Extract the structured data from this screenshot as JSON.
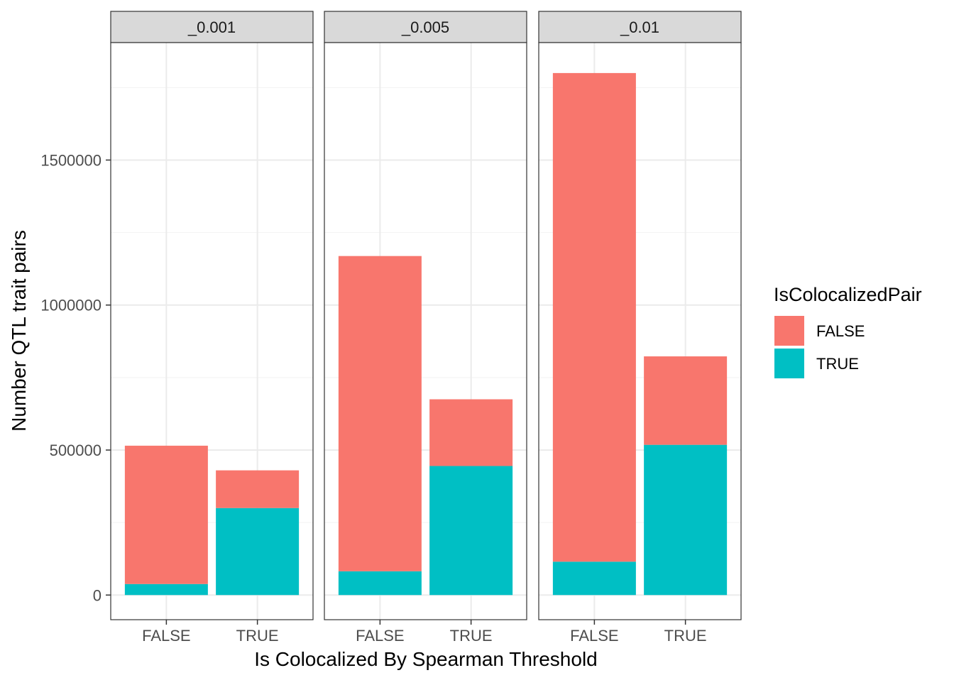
{
  "chart_data": {
    "type": "bar",
    "stacked": true,
    "facets": [
      "_0.001",
      "_0.005",
      "_0.01"
    ],
    "categories": [
      "FALSE",
      "TRUE"
    ],
    "xlabel": "Is Colocalized By Spearman Threshold",
    "ylabel": "Number QTL trait pairs",
    "ylim": [
      -85000,
      1905000
    ],
    "yticks": [
      0,
      500000,
      1000000,
      1500000
    ],
    "ytick_labels": [
      "0",
      "500000",
      "1000000",
      "1500000"
    ],
    "grid": true,
    "legend": {
      "title": "IsColocalizedPair",
      "position": "right",
      "entries": [
        "FALSE",
        "TRUE"
      ]
    },
    "colors": {
      "FALSE": "#F8766D",
      "TRUE": "#00BFC4"
    },
    "series": [
      {
        "name": "TRUE",
        "facet_values": [
          [
            38000,
            300000
          ],
          [
            82000,
            445000
          ],
          [
            115000,
            518000
          ]
        ]
      },
      {
        "name": "FALSE",
        "facet_values": [
          [
            477000,
            130000
          ],
          [
            1087000,
            230000
          ],
          [
            1685000,
            305000
          ]
        ]
      }
    ]
  }
}
